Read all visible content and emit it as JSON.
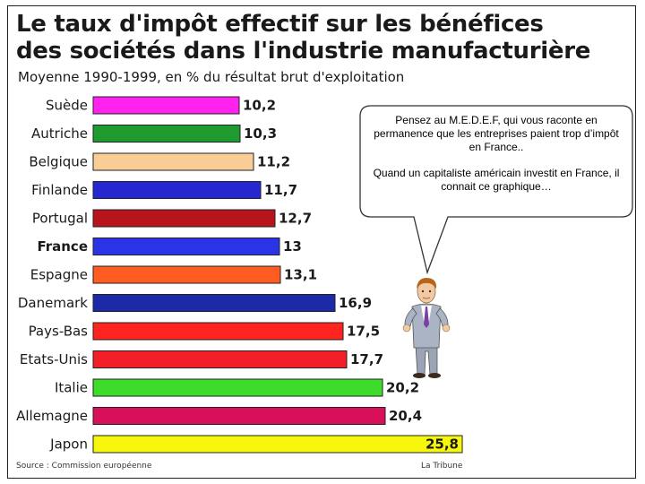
{
  "title_line1": "Le taux d'impôt effectif sur les bénéfices",
  "title_line2": "des sociétés dans l'industrie manufacturière",
  "subtitle": "Moyenne 1990-1999, en % du résultat brut d'exploitation",
  "source": "Source : Commission européenne",
  "publisher": "La Tribune",
  "bubble": {
    "paragraph1": "Pensez au M.E.D.E.F, qui vous raconte en permanence que les entreprises paient trop d’impôt en France..",
    "paragraph2": "Quand un capitaliste américain investit en France, il connait ce graphique…"
  },
  "chart_data": {
    "type": "bar",
    "orientation": "horizontal",
    "title": "Le taux d'impôt effectif sur les bénéfices des sociétés dans l'industrie manufacturière",
    "subtitle": "Moyenne 1990-1999, en % du résultat brut d'exploitation",
    "categories": [
      "Suède",
      "Autriche",
      "Belgique",
      "Finlande",
      "Portugal",
      "France",
      "Espagne",
      "Danemark",
      "Pays-Bas",
      "Etats-Unis",
      "Italie",
      "Allemagne",
      "Japon"
    ],
    "values": [
      10.2,
      10.3,
      11.2,
      11.7,
      12.7,
      13,
      13.1,
      16.9,
      17.5,
      17.7,
      20.2,
      20.4,
      25.8
    ],
    "value_labels": [
      "10,2",
      "10,3",
      "11,2",
      "11,7",
      "12,7",
      "13",
      "13,1",
      "16,9",
      "17,5",
      "17,7",
      "20,2",
      "20,4",
      "25,8"
    ],
    "colors": [
      "#ff22ee",
      "#1e9a2e",
      "#f9cd96",
      "#2727d2",
      "#b8141c",
      "#2a34e6",
      "#ff5c22",
      "#1c2aa8",
      "#ff2420",
      "#f21f28",
      "#3ddc2a",
      "#d8105a",
      "#f7f70e"
    ],
    "bold_category": "France",
    "xlim": [
      0,
      25.8
    ],
    "grid": false,
    "legend": "none"
  }
}
